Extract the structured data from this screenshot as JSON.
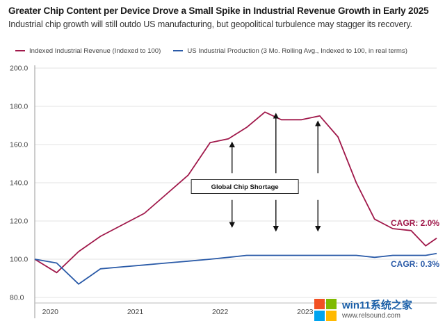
{
  "chart_data": {
    "type": "line",
    "title": "Greater Chip Content per Device Drove a Small Spike in Industrial Revenue Growth in Early 2025",
    "subtitle": "Industrial chip growth will still outdo US manufacturing, but geopolitical turbulence may stagger its recovery.",
    "xlabel": "",
    "ylabel": "",
    "ylim": [
      80,
      200
    ],
    "yticks": [
      80,
      100,
      120,
      140,
      160,
      180,
      200
    ],
    "ytick_labels": [
      "80.0",
      "100.0",
      "120.0",
      "140.0",
      "160.0",
      "180.0",
      "200.0"
    ],
    "xlim": [
      0,
      22
    ],
    "xticks": [
      {
        "x": 0.85,
        "label": "2020"
      },
      {
        "x": 5.5,
        "label": "2021"
      },
      {
        "x": 10.15,
        "label": "2022"
      },
      {
        "x": 14.8,
        "label": "2023"
      }
    ],
    "grid": "horizontal",
    "series": [
      {
        "name": "Indexed Industrial Revenue (Indexed to 100)",
        "color": "#a0184a",
        "x": [
          0,
          1.2,
          2.4,
          3.6,
          4.8,
          6,
          7.2,
          8.4,
          9.6,
          10.6,
          11.6,
          12.6,
          13.5,
          14.6,
          15.6,
          16.6,
          17.6,
          18.6,
          19.6,
          20.6,
          21.4,
          22
        ],
        "values": [
          100,
          93,
          104,
          112,
          118,
          124,
          134,
          144,
          161,
          163,
          169,
          177,
          173,
          173,
          175,
          164,
          140,
          121,
          116,
          115,
          107,
          111
        ]
      },
      {
        "name": "US Industrial Production (3 Mo. Rolling Avg., Indexed to 100, in real terms)",
        "color": "#2b5ba8",
        "x": [
          0,
          1.2,
          2.4,
          3.6,
          4.8,
          6,
          7.2,
          8.4,
          9.6,
          10.6,
          11.6,
          12.6,
          13.5,
          14.6,
          15.6,
          16.6,
          17.6,
          18.6,
          19.6,
          20.6,
          21.4,
          22
        ],
        "values": [
          100,
          98,
          87,
          95,
          96,
          97,
          98,
          99,
          100,
          101,
          102,
          102,
          102,
          102,
          102,
          102,
          102,
          101,
          102,
          102,
          102,
          103
        ]
      }
    ],
    "annotations": [
      {
        "text": "Global Chip Shortage",
        "type": "box",
        "center_x": 11.5,
        "y": 138
      },
      {
        "text": "CAGR: 2.0%",
        "series": 0,
        "color": "#a0184a"
      },
      {
        "text": "CAGR: 0.3%",
        "series": 1,
        "color": "#2b5ba8"
      }
    ],
    "arrows": [
      {
        "x": 10.8,
        "from": 145,
        "up_to": 161,
        "down_to": 117
      },
      {
        "x": 13.2,
        "from": 145,
        "up_to": 176,
        "down_to": 115
      },
      {
        "x": 15.5,
        "from": 145,
        "up_to": 172,
        "down_to": 115
      }
    ]
  },
  "watermark": {
    "main": "win11系统之家",
    "sub": "www.relsound.com",
    "colors": [
      "#f25022",
      "#7fba00",
      "#00a4ef",
      "#ffb900"
    ]
  }
}
